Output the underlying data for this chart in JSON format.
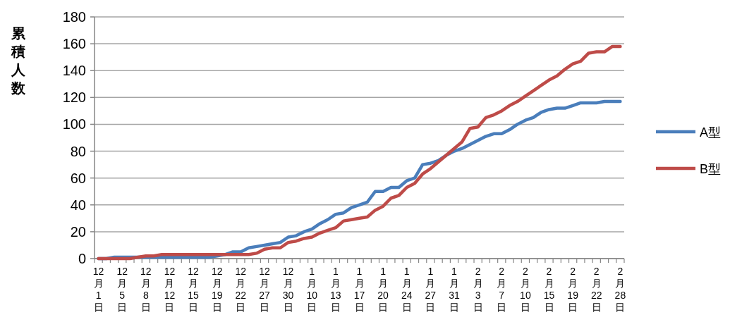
{
  "chart_data": {
    "type": "line",
    "ylabel": "累積人数",
    "categories": [
      "12月1日",
      null,
      null,
      "12月5日",
      null,
      null,
      "12月8日",
      null,
      null,
      "12月12日",
      null,
      null,
      "12月15日",
      null,
      null,
      "12月19日",
      null,
      null,
      "12月22日",
      null,
      null,
      "12月27日",
      null,
      null,
      "12月30日",
      null,
      null,
      "1月10日",
      null,
      null,
      "1月13日",
      null,
      null,
      "1月17日",
      null,
      null,
      "1月20日",
      null,
      null,
      "1月24日",
      null,
      null,
      "1月27日",
      null,
      null,
      "1月31日",
      null,
      null,
      "2月3日",
      null,
      null,
      "2月7日",
      null,
      null,
      "2月10日",
      null,
      null,
      "2月15日",
      null,
      null,
      "2月19日",
      null,
      null,
      "2月22日",
      null,
      null,
      "2月28日"
    ],
    "series": [
      {
        "name": "A型",
        "color": "#4a7ebb",
        "values": [
          0,
          0,
          1,
          1,
          1,
          1,
          1,
          1,
          1,
          1,
          1,
          1,
          1,
          1,
          1,
          2,
          3,
          5,
          5,
          8,
          9,
          10,
          11,
          12,
          16,
          17,
          20,
          22,
          26,
          29,
          33,
          34,
          38,
          40,
          42,
          50,
          50,
          53,
          53,
          58,
          60,
          70,
          71,
          73,
          77,
          80,
          82,
          85,
          88,
          91,
          93,
          93,
          96,
          100,
          103,
          105,
          109,
          111,
          112,
          112,
          114,
          116,
          116,
          116,
          117,
          117,
          117
        ]
      },
      {
        "name": "B型",
        "color": "#be4b48",
        "values": [
          0,
          0,
          0,
          0,
          0,
          1,
          2,
          2,
          3,
          3,
          3,
          3,
          3,
          3,
          3,
          3,
          3,
          3,
          3,
          3,
          4,
          7,
          8,
          8,
          12,
          13,
          15,
          16,
          19,
          21,
          23,
          28,
          29,
          30,
          31,
          36,
          39,
          45,
          47,
          53,
          56,
          63,
          67,
          72,
          77,
          82,
          87,
          97,
          98,
          105,
          107,
          110,
          114,
          117,
          121,
          125,
          129,
          133,
          136,
          141,
          145,
          147,
          153,
          154,
          154,
          158,
          158
        ]
      }
    ],
    "ylim": [
      0,
      180
    ],
    "yticks": [
      0,
      20,
      40,
      60,
      80,
      100,
      120,
      140,
      160,
      180
    ],
    "grid": "y",
    "legend": "right",
    "line_style": "solid",
    "marker": "none"
  }
}
